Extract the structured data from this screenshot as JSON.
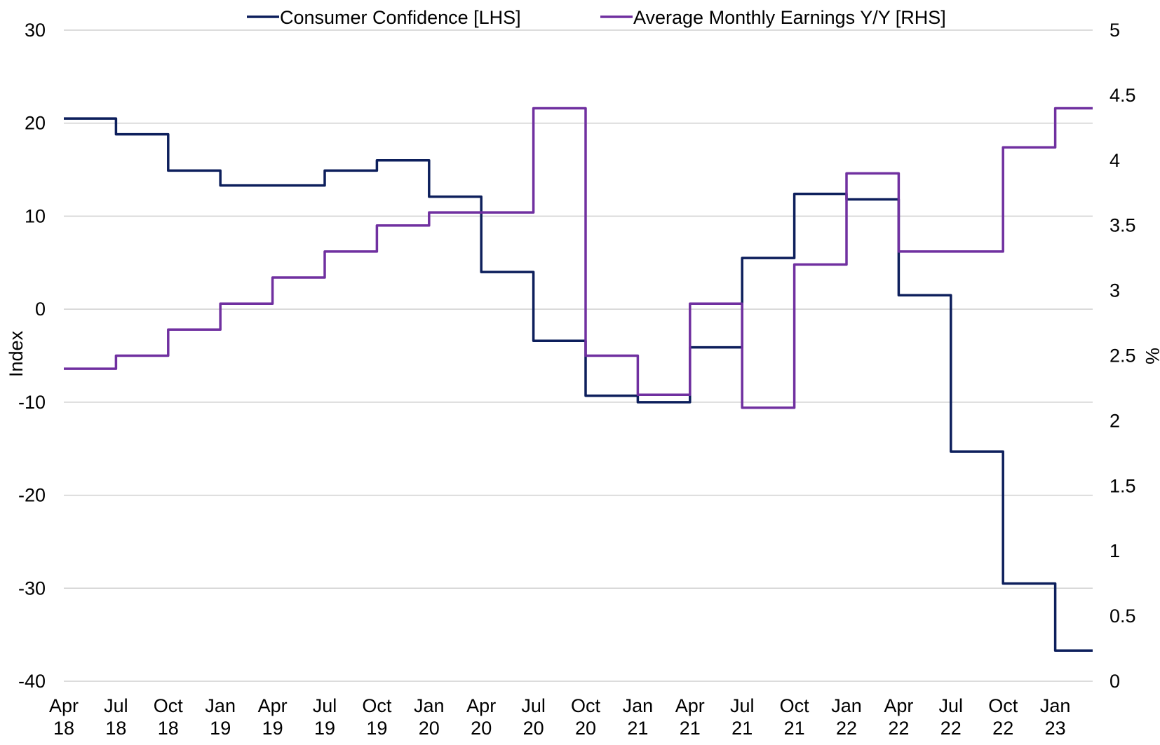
{
  "chart_data": {
    "type": "line",
    "step": true,
    "x_ticks": [
      {
        "month": "Apr",
        "year": "18"
      },
      {
        "month": "Jul",
        "year": "18"
      },
      {
        "month": "Oct",
        "year": "18"
      },
      {
        "month": "Jan",
        "year": "19"
      },
      {
        "month": "Apr",
        "year": "19"
      },
      {
        "month": "Jul",
        "year": "19"
      },
      {
        "month": "Oct",
        "year": "19"
      },
      {
        "month": "Jan",
        "year": "20"
      },
      {
        "month": "Apr",
        "year": "20"
      },
      {
        "month": "Jul",
        "year": "20"
      },
      {
        "month": "Oct",
        "year": "20"
      },
      {
        "month": "Jan",
        "year": "21"
      },
      {
        "month": "Apr",
        "year": "21"
      },
      {
        "month": "Jul",
        "year": "21"
      },
      {
        "month": "Oct",
        "year": "21"
      },
      {
        "month": "Jan",
        "year": "22"
      },
      {
        "month": "Apr",
        "year": "22"
      },
      {
        "month": "Jul",
        "year": "22"
      },
      {
        "month": "Oct",
        "year": "22"
      },
      {
        "month": "Jan",
        "year": "23"
      }
    ],
    "y_left": {
      "label": "Index",
      "ylim": [
        -40,
        30
      ],
      "ticks": [
        "30",
        "20",
        "10",
        "0",
        "-10",
        "-20",
        "-30",
        "-40"
      ]
    },
    "y_right": {
      "label": "%",
      "ylim": [
        0,
        5
      ],
      "ticks": [
        "5",
        "4.5",
        "4",
        "3.5",
        "3",
        "2.5",
        "2",
        "1.5",
        "1",
        "0.5",
        "0"
      ]
    },
    "grid": true,
    "legend_position": "top-center",
    "series": [
      {
        "name": "Consumer Confidence [LHS]",
        "axis": "left",
        "color": "#0d1f5c",
        "values": [
          20.5,
          18.8,
          14.9,
          13.3,
          13.3,
          14.9,
          16.0,
          12.1,
          4.0,
          -3.4,
          -9.3,
          -10.0,
          -4.1,
          5.5,
          12.4,
          11.8,
          1.5,
          -15.3,
          -29.5,
          -36.7
        ]
      },
      {
        "name": "Average Monthly Earnings Y/Y [RHS]",
        "axis": "right",
        "color": "#7030a0",
        "values": [
          2.4,
          2.5,
          2.7,
          2.9,
          3.1,
          3.3,
          3.5,
          3.6,
          3.6,
          4.4,
          2.5,
          2.2,
          2.9,
          2.1,
          3.2,
          3.9,
          3.3,
          3.3,
          4.1,
          4.4
        ]
      }
    ]
  }
}
